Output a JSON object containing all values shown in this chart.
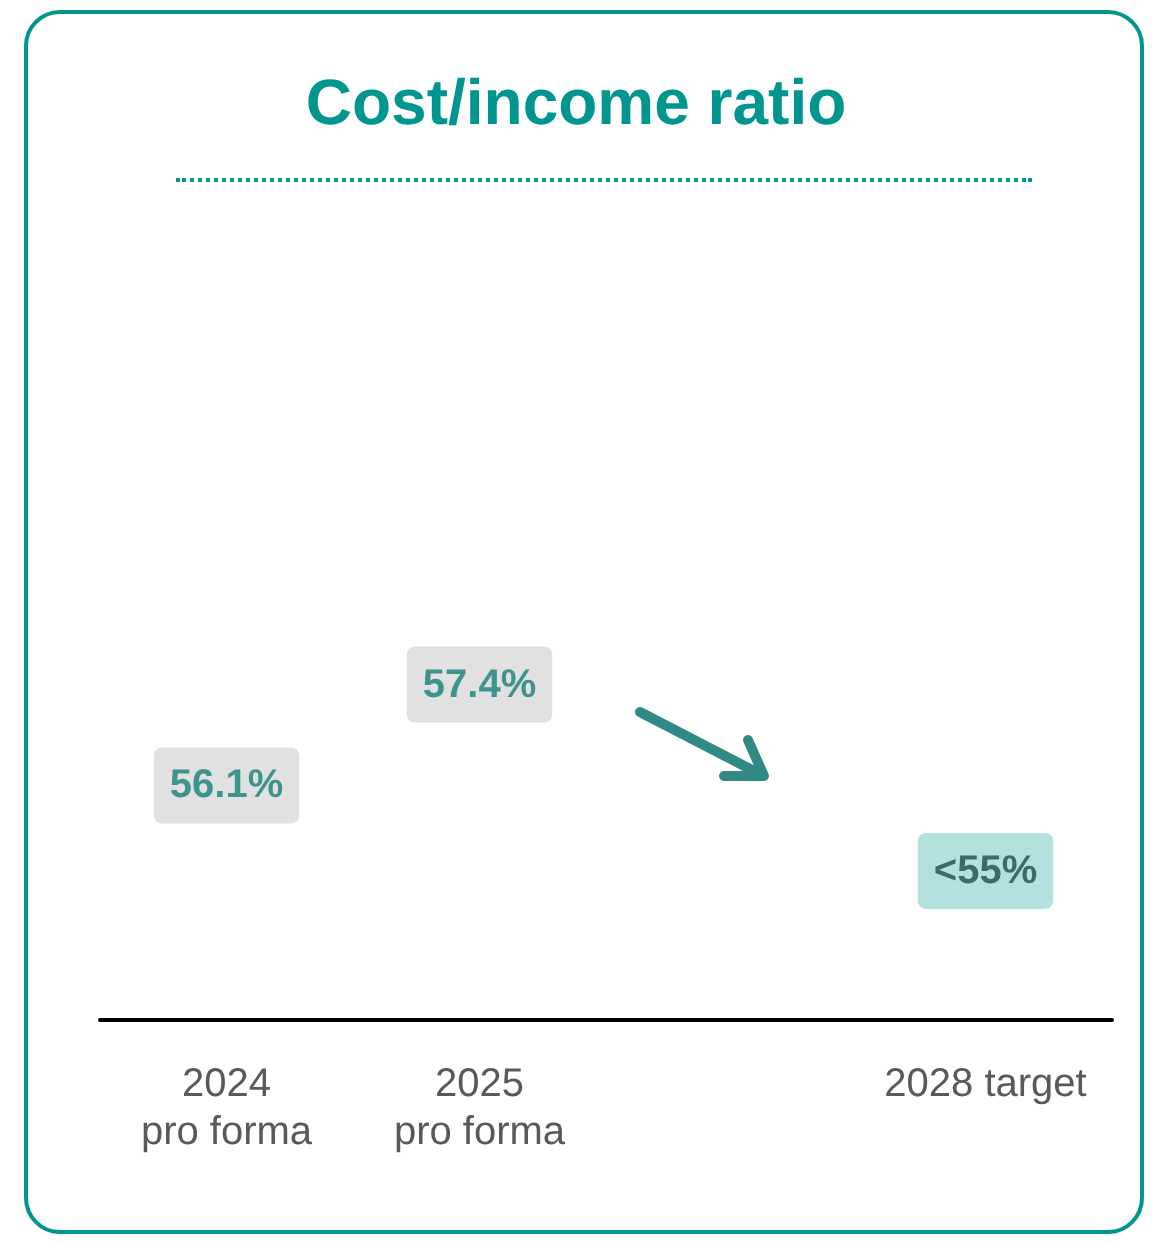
{
  "chart_data": {
    "type": "other",
    "title": "Cost/income ratio",
    "categories": [
      "2024\npro forma",
      "2025\npro forma",
      null,
      "2028 target"
    ],
    "values": [
      56.1,
      57.4,
      null,
      55
    ],
    "value_labels": [
      "56.1%",
      "57.4%",
      null,
      "<55%"
    ],
    "colors": [
      "#d9d9d9",
      "#d9d9d9",
      null,
      "#9fd9d6"
    ]
  }
}
